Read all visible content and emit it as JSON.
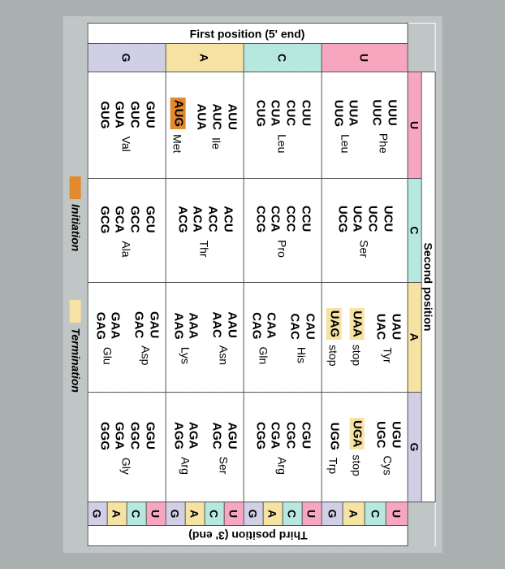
{
  "labels": {
    "top": "Second position",
    "left": "First position (5' end)",
    "right": "Third position (3' end)",
    "init": "Initiation",
    "term": "Termination"
  },
  "bases": [
    "U",
    "C",
    "A",
    "G"
  ],
  "colors": {
    "U": "#f7a6c0",
    "C": "#b7e8e0",
    "A": "#f6e3a3",
    "G": "#d0cfe6",
    "start": "#e48a2e",
    "stop": "#f6e3a3",
    "plain": "#ffffff"
  },
  "aa": {
    "U": {
      "U": [
        {
          "codons": [
            "UUU",
            "UUC"
          ],
          "aa": "Phe"
        },
        {
          "codons": [
            "UUA",
            "UUG"
          ],
          "aa": "Leu"
        }
      ],
      "C": [
        {
          "codons": [
            "UCU",
            "UCC",
            "UCA",
            "UCG"
          ],
          "aa": "Ser"
        }
      ],
      "A": [
        {
          "codons": [
            "UAU",
            "UAC"
          ],
          "aa": "Tyr"
        },
        {
          "codons": [
            "UAA"
          ],
          "aa": "stop",
          "hl": "stop"
        },
        {
          "codons": [
            "UAG"
          ],
          "aa": "stop",
          "hl": "stop"
        }
      ],
      "G": [
        {
          "codons": [
            "UGU",
            "UGC"
          ],
          "aa": "Cys"
        },
        {
          "codons": [
            "UGA"
          ],
          "aa": "stop",
          "hl": "stop"
        },
        {
          "codons": [
            "UGG"
          ],
          "aa": "Trp"
        }
      ]
    },
    "C": {
      "U": [
        {
          "codons": [
            "CUU",
            "CUC",
            "CUA",
            "CUG"
          ],
          "aa": "Leu"
        }
      ],
      "C": [
        {
          "codons": [
            "CCU",
            "CCC",
            "CCA",
            "CCG"
          ],
          "aa": "Pro"
        }
      ],
      "A": [
        {
          "codons": [
            "CAU",
            "CAC"
          ],
          "aa": "His"
        },
        {
          "codons": [
            "CAA",
            "CAG"
          ],
          "aa": "Gln"
        }
      ],
      "G": [
        {
          "codons": [
            "CGU",
            "CGC",
            "CGA",
            "CGG"
          ],
          "aa": "Arg"
        }
      ]
    },
    "A": {
      "U": [
        {
          "codons": [
            "AUU",
            "AUC",
            "AUA"
          ],
          "aa": "Ile"
        },
        {
          "codons": [
            "AUG"
          ],
          "aa": "Met",
          "hl": "start"
        }
      ],
      "C": [
        {
          "codons": [
            "ACU",
            "ACC",
            "ACA",
            "ACG"
          ],
          "aa": "Thr"
        }
      ],
      "A": [
        {
          "codons": [
            "AAU",
            "AAC"
          ],
          "aa": "Asn"
        },
        {
          "codons": [
            "AAA",
            "AAG"
          ],
          "aa": "Lys"
        }
      ],
      "G": [
        {
          "codons": [
            "AGU",
            "AGC"
          ],
          "aa": "Ser"
        },
        {
          "codons": [
            "AGA",
            "AGG"
          ],
          "aa": "Arg"
        }
      ]
    },
    "G": {
      "U": [
        {
          "codons": [
            "GUU",
            "GUC",
            "GUA",
            "GUG"
          ],
          "aa": "Val"
        }
      ],
      "C": [
        {
          "codons": [
            "GCU",
            "GCC",
            "GCA",
            "GCG"
          ],
          "aa": "Ala"
        }
      ],
      "A": [
        {
          "codons": [
            "GAU",
            "GAC"
          ],
          "aa": "Asp"
        },
        {
          "codons": [
            "GAA",
            "GAG"
          ],
          "aa": "Glu"
        }
      ],
      "G": [
        {
          "codons": [
            "GGU",
            "GGC",
            "GGA",
            "GGG"
          ],
          "aa": "Gly"
        }
      ]
    }
  }
}
